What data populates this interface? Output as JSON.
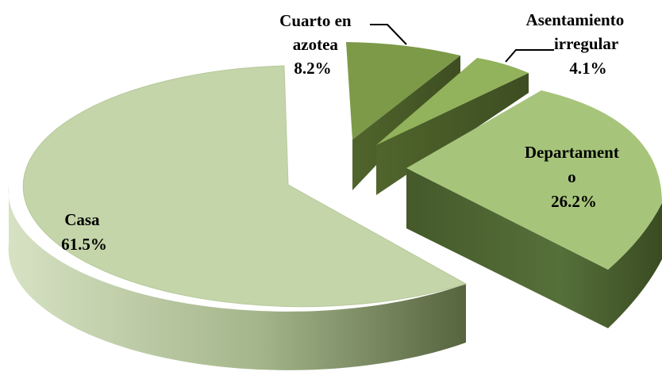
{
  "chart_data": {
    "type": "pie",
    "style": "3d-exploded",
    "title": "",
    "slices": [
      {
        "label_lines": [
          "Casa",
          "61.5%"
        ],
        "category": "Casa",
        "value": 61.5,
        "color": "#c4d5a9"
      },
      {
        "label_lines": [
          "Cuarto en",
          "azotea",
          "8.2%"
        ],
        "category": "Cuarto en azotea",
        "value": 8.2,
        "color": "#7d9a48"
      },
      {
        "label_lines": [
          "Asentamiento",
          "irregular",
          "4.1%"
        ],
        "category": "Asentamiento irregular",
        "value": 4.1,
        "color": "#92b25b"
      },
      {
        "label_lines": [
          "Departament",
          "o",
          "26.2%"
        ],
        "category": "Departamento",
        "value": 26.2,
        "color": "#a7c57a"
      }
    ]
  }
}
